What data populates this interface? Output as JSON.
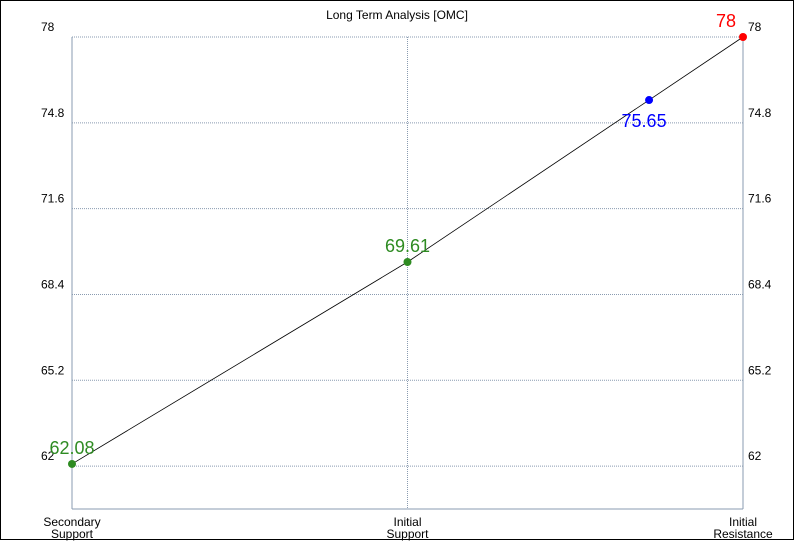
{
  "chart_data": {
    "type": "line",
    "title": "Long Term Analysis [OMC]",
    "categories": [
      [
        "Secondary",
        "Support"
      ],
      [
        "Initial",
        "Support"
      ],
      [
        "Initial",
        "Resistance"
      ]
    ],
    "yticks": [
      62,
      65.2,
      68.4,
      71.6,
      74.8,
      78
    ],
    "ytick_labels": [
      "62",
      "65.2",
      "68.4",
      "71.6",
      "74.8",
      "78"
    ],
    "ylim": [
      60.4,
      78
    ],
    "grid": true,
    "line_color": "#000000",
    "points": [
      {
        "x": 0,
        "y": 62.08,
        "label": "62.08",
        "color": "#2e8b22"
      },
      {
        "x": 1,
        "y": 69.61,
        "label": "69.61",
        "color": "#2e8b22"
      },
      {
        "x": 1.72,
        "y": 75.65,
        "label": "75.65",
        "color": "#0000ff"
      },
      {
        "x": 2,
        "y": 78,
        "label": "78",
        "color": "#ff0000"
      }
    ]
  }
}
